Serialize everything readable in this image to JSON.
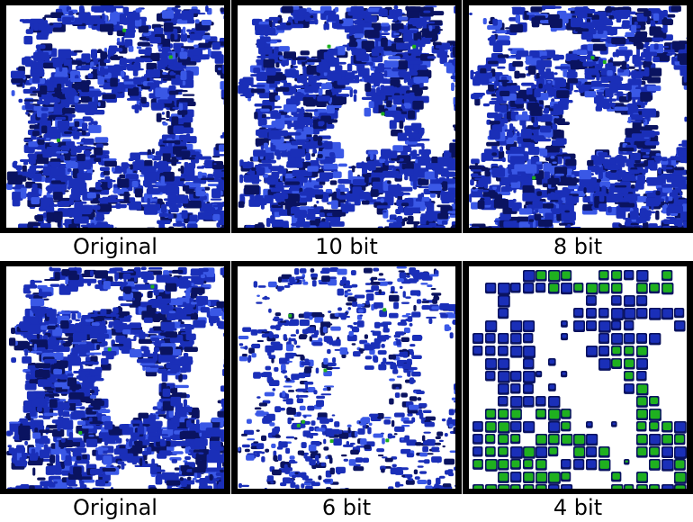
{
  "panels": [
    {
      "caption": "Original",
      "style": "dense-blue"
    },
    {
      "caption": "10 bit",
      "style": "dense-blue"
    },
    {
      "caption": "8 bit",
      "style": "dense-blue"
    },
    {
      "caption": "Original",
      "style": "dense-blue"
    },
    {
      "caption": "6 bit",
      "style": "sparse-blue"
    },
    {
      "caption": "4 bit",
      "style": "blocky-green"
    }
  ],
  "colors": {
    "blue": "#1a2fb8",
    "blue_dark": "#0a1360",
    "blue_light": "#3a58e6",
    "green": "#1fb01f",
    "green_dark": "#0a4d0a",
    "frame": "#000000",
    "background": "#ffffff"
  }
}
